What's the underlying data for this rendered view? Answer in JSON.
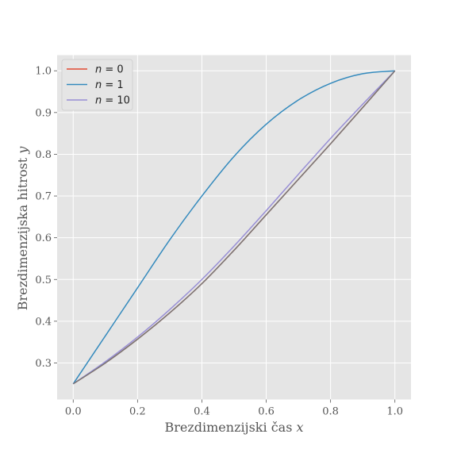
{
  "chart_data": {
    "type": "line",
    "title": "",
    "xlabel": "Brezdimenzijski čas",
    "xlabel_var": "x",
    "ylabel": "Brezdimenzijska hitrost",
    "ylabel_var": "y",
    "xlim": [
      -0.05,
      1.05
    ],
    "ylim": [
      0.2125,
      1.0375
    ],
    "xticks": [
      "0.0",
      "0.2",
      "0.4",
      "0.6",
      "0.8",
      "1.0"
    ],
    "yticks": [
      "0.3",
      "0.4",
      "0.5",
      "0.6",
      "0.7",
      "0.8",
      "0.9",
      "1.0"
    ],
    "grid": true,
    "legend_position": "top-left",
    "series": [
      {
        "name": "n = 0",
        "color": "#E24A33",
        "x": [
          0,
          0.1,
          0.2,
          0.3,
          0.4,
          0.5,
          0.6,
          0.7,
          0.8,
          0.9,
          1.0
        ],
        "y": [
          0.25,
          0.3,
          0.357,
          0.42,
          0.49,
          0.57,
          0.655,
          0.74,
          0.825,
          0.912,
          1.0
        ]
      },
      {
        "name": "n = 1",
        "color": "#348ABD",
        "x": [
          0,
          0.1,
          0.2,
          0.3,
          0.4,
          0.5,
          0.6,
          0.7,
          0.8,
          0.9,
          1.0
        ],
        "y": [
          0.25,
          0.365,
          0.48,
          0.595,
          0.7,
          0.795,
          0.872,
          0.93,
          0.97,
          0.993,
          1.0
        ]
      },
      {
        "name": "n = 10",
        "color": "#988ED5",
        "x": [
          0,
          0.1,
          0.2,
          0.3,
          0.4,
          0.5,
          0.6,
          0.7,
          0.8,
          0.9,
          1.0
        ],
        "y": [
          0.25,
          0.303,
          0.362,
          0.428,
          0.5,
          0.58,
          0.665,
          0.752,
          0.838,
          0.92,
          1.0
        ]
      },
      {
        "name": "",
        "color": "#777777",
        "x": [
          0,
          0.1,
          0.2,
          0.3,
          0.4,
          0.5,
          0.6,
          0.7,
          0.8,
          0.9,
          1.0
        ],
        "y": [
          0.25,
          0.3,
          0.357,
          0.42,
          0.49,
          0.57,
          0.655,
          0.74,
          0.825,
          0.912,
          1.0
        ]
      }
    ]
  }
}
